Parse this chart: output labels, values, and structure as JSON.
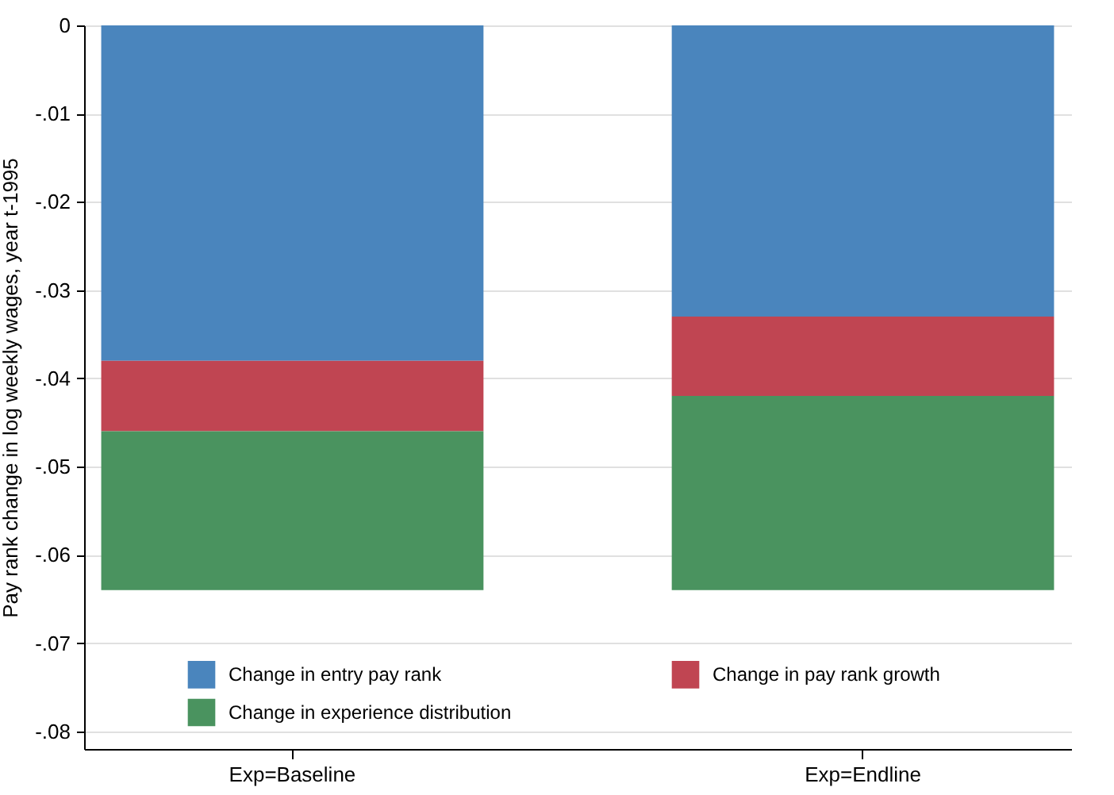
{
  "chart_data": {
    "type": "bar",
    "stacked": true,
    "ylabel": "Pay rank change in log weekly wages, year t-1995",
    "categories": [
      "Exp=Baseline",
      "Exp=Endline"
    ],
    "series": [
      {
        "name": "Change in entry pay rank",
        "color": "#4a85bd",
        "values": [
          -0.038,
          -0.033
        ]
      },
      {
        "name": "Change in pay rank growth",
        "color": "#c04552",
        "values": [
          -0.008,
          -0.009
        ]
      },
      {
        "name": "Change in experience distribution",
        "color": "#4a935f",
        "values": [
          -0.018,
          -0.022
        ]
      }
    ],
    "ylim": [
      -0.082,
      0
    ],
    "yticks": [
      {
        "value": 0,
        "label": "0"
      },
      {
        "value": -0.01,
        "label": "-.01"
      },
      {
        "value": -0.02,
        "label": "-.02"
      },
      {
        "value": -0.03,
        "label": "-.03"
      },
      {
        "value": -0.04,
        "label": "-.04"
      },
      {
        "value": -0.05,
        "label": "-.05"
      },
      {
        "value": -0.06,
        "label": "-.06"
      },
      {
        "value": -0.07,
        "label": "-.07"
      },
      {
        "value": -0.08,
        "label": "-.08"
      }
    ],
    "grid": "y",
    "legend": "bottom"
  }
}
